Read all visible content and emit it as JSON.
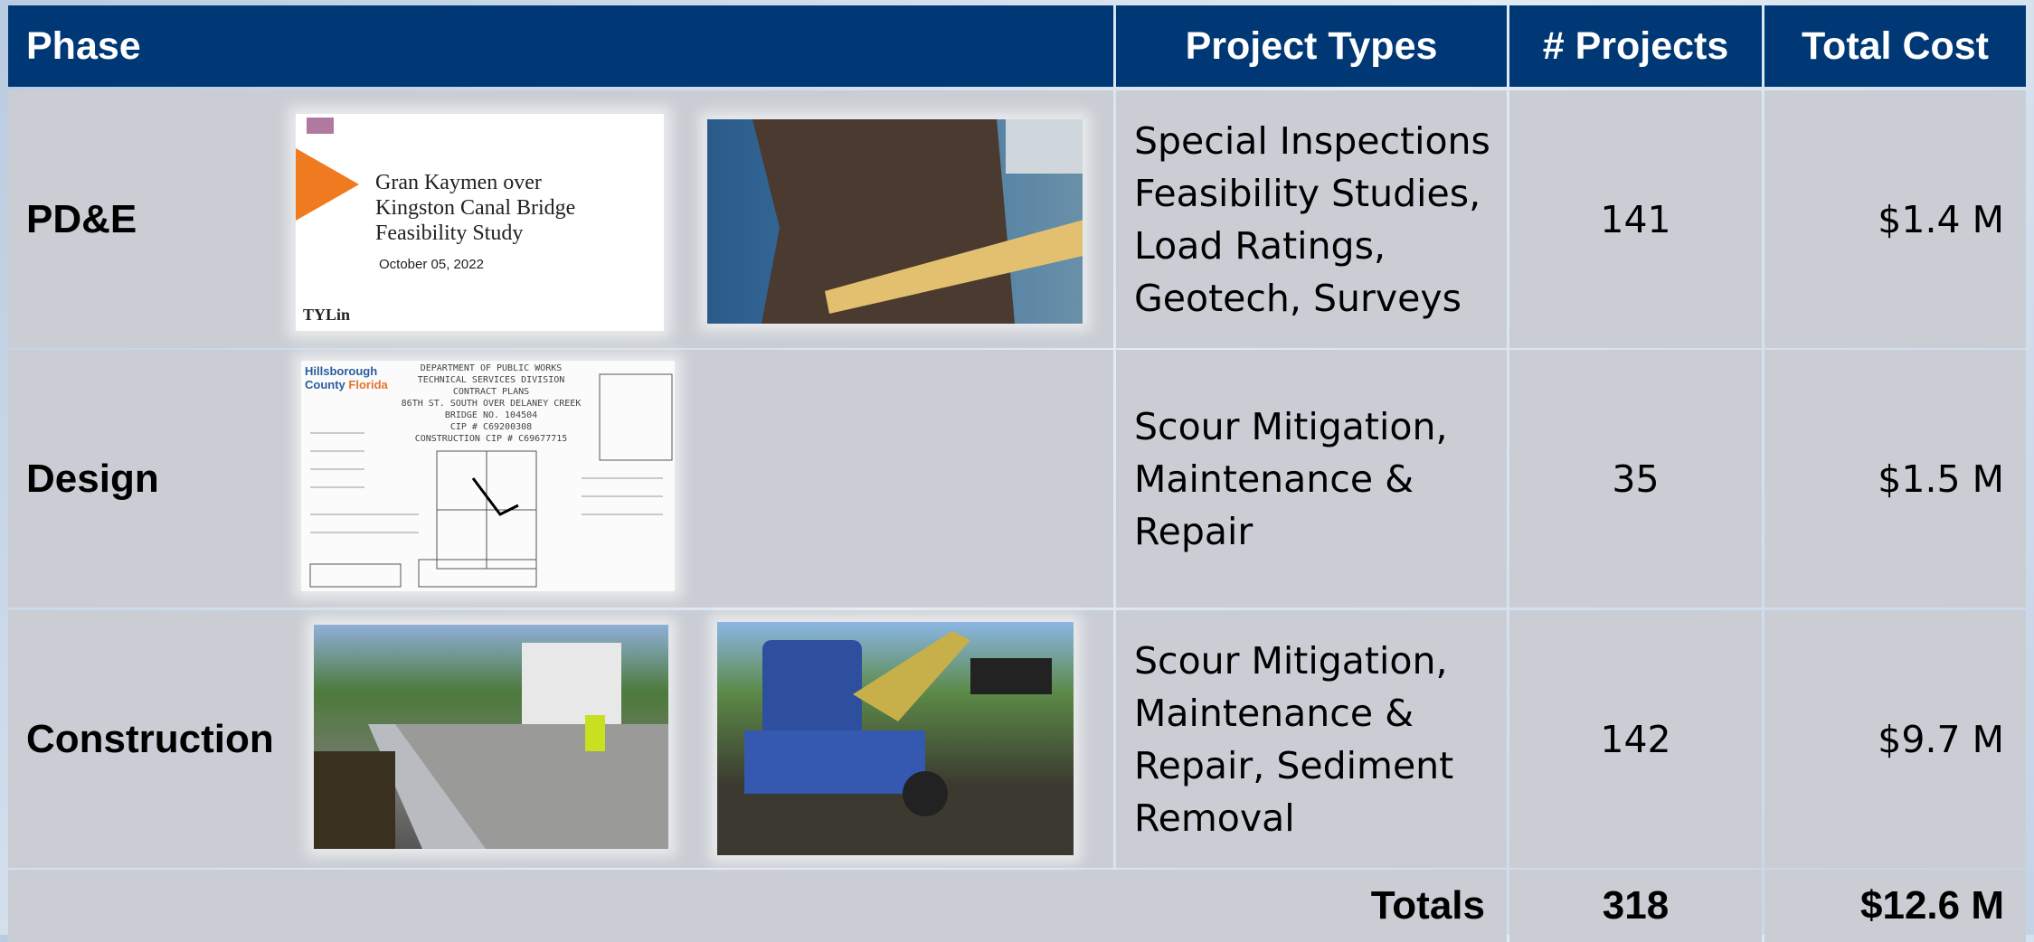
{
  "header": {
    "columns": [
      "Phase",
      "Project Types",
      "# Projects",
      "Total Cost"
    ]
  },
  "table": {
    "rows": [
      {
        "phase": "PD&E",
        "project_types": [
          "Special Inspections",
          "Feasibility Studies,",
          "Load Ratings,",
          "Geotech, Surveys"
        ],
        "projects": 141,
        "total_cost": "$1.4 M",
        "image_text": {
          "title_lines": [
            "Gran Kaymen over",
            "Kingston Canal Bridge",
            "Feasibility Study"
          ],
          "date": "October 05, 2022",
          "logo": "TYLin"
        }
      },
      {
        "phase": "Design",
        "project_types": [
          "Scour Mitigation,",
          "Maintenance &",
          "Repair"
        ],
        "projects": 35,
        "total_cost": "$1.5 M",
        "image_text": {
          "logo": [
            "Hillsborough",
            "County",
            "Florida"
          ],
          "sheet_lines": [
            "DEPARTMENT OF PUBLIC WORKS",
            "TECHNICAL SERVICES DIVISION",
            "CONTRACT PLANS",
            "86TH ST. SOUTH OVER DELANEY CREEK",
            "BRIDGE NO. 104504",
            "CIP # C69200308",
            "CONSTRUCTION CIP # C69677715"
          ]
        }
      },
      {
        "phase": "Construction",
        "project_types": [
          "Scour Mitigation,",
          "Maintenance &",
          "Repair, Sediment",
          "Removal"
        ],
        "projects": 142,
        "total_cost": "$9.7 M"
      }
    ]
  },
  "totals": {
    "label": "Totals",
    "projects": 318,
    "total_cost": "$12.6 M"
  }
}
